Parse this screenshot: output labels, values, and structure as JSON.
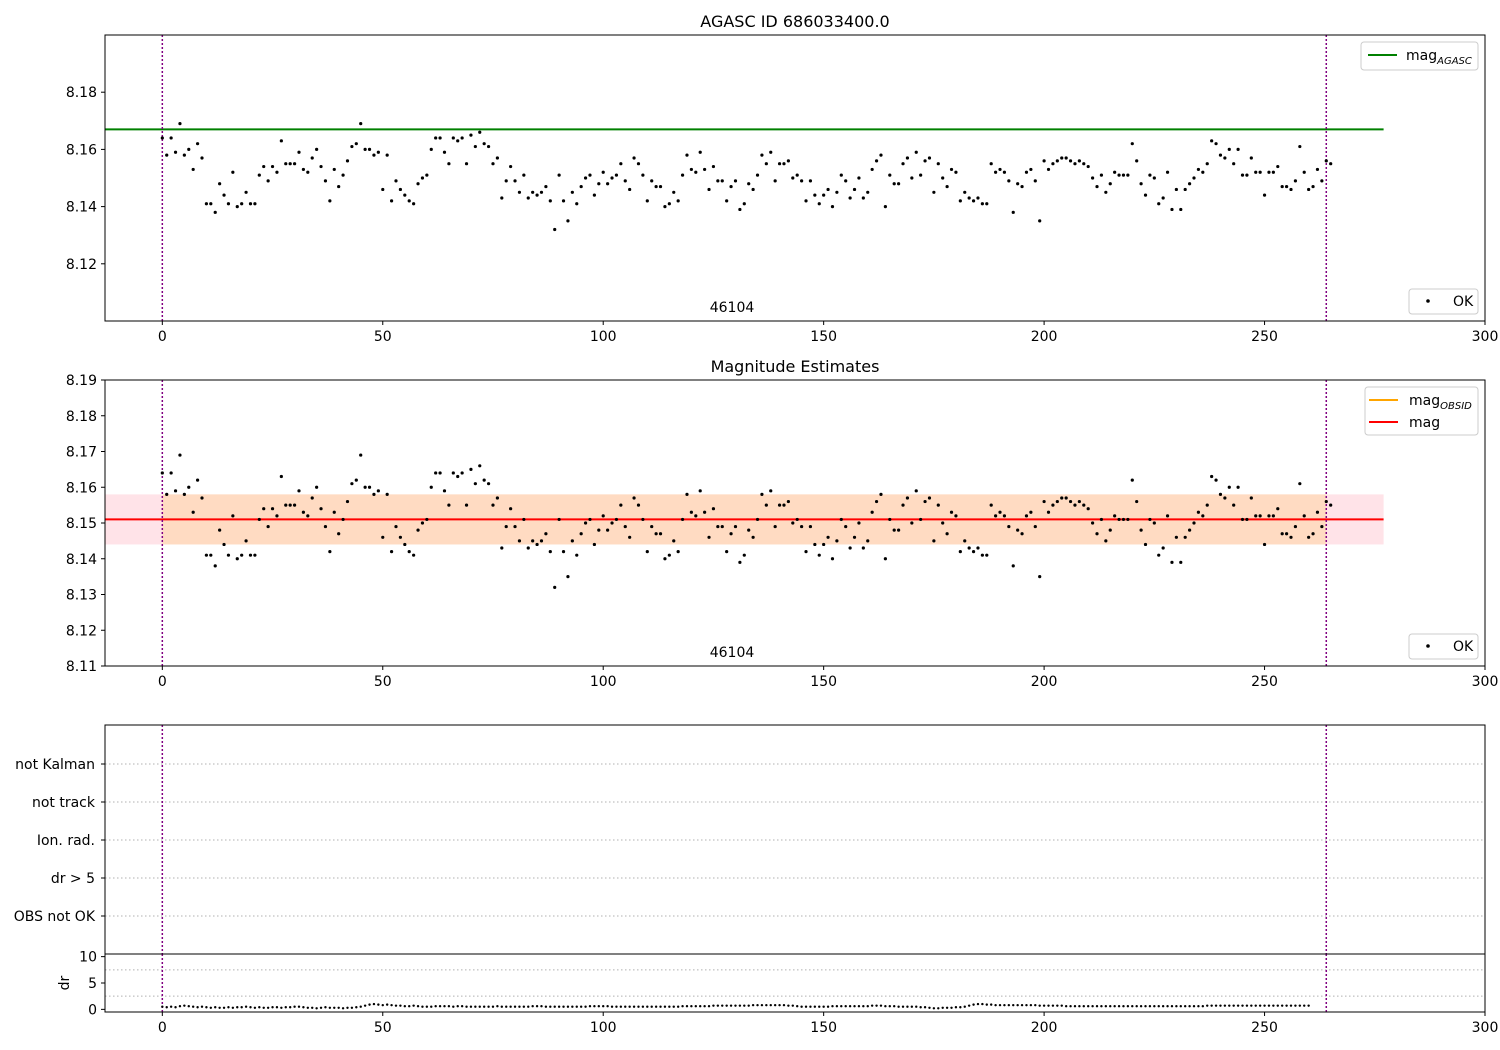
{
  "figure": {
    "line_colors": {
      "agasc": "#008000",
      "obsid": "#ffa500",
      "mag": "#ff0000",
      "band_fill": "#ffc0cb",
      "band_fill_2": "#ffd8b8",
      "vline": "#800080",
      "points": "#000000",
      "grid": "#b0b0b0"
    }
  },
  "chart_data": [
    {
      "type": "scatter",
      "title": "AGASC ID 686033400.0",
      "annotation": "46104",
      "xlim": [
        -13,
        300
      ],
      "ylim": [
        8.1,
        8.2
      ],
      "xticks": [
        0,
        50,
        100,
        150,
        200,
        250,
        300
      ],
      "yticks": [
        8.12,
        8.14,
        8.16,
        8.18
      ],
      "vlines": [
        0,
        264
      ],
      "hlines": [
        {
          "name": "mag_AGASC",
          "y": 8.167,
          "x": [
            -13,
            277
          ]
        }
      ],
      "legend_upper": {
        "main": "mag",
        "sub": "AGASC"
      },
      "legend_lower": "OK",
      "series": [
        {
          "name": "OK",
          "y_ref": "shared_points"
        }
      ]
    },
    {
      "type": "scatter",
      "title": "Magnitude Estimates",
      "annotation": "46104",
      "xlim": [
        -13,
        300
      ],
      "ylim": [
        8.11,
        8.19
      ],
      "xticks": [
        0,
        50,
        100,
        150,
        200,
        250,
        300
      ],
      "yticks": [
        8.11,
        8.12,
        8.13,
        8.14,
        8.15,
        8.16,
        8.17,
        8.18,
        8.19
      ],
      "vlines": [
        0,
        264
      ],
      "hlines": [
        {
          "name": "mag",
          "y": 8.151,
          "x": [
            -13,
            277
          ]
        }
      ],
      "bands": [
        {
          "y": [
            8.144,
            8.158
          ],
          "x": [
            -13,
            277
          ]
        }
      ],
      "legend_upper": [
        {
          "main": "mag",
          "sub": "OBSID"
        },
        {
          "main": "mag",
          "sub": ""
        }
      ],
      "legend_lower": "OK",
      "series": [
        {
          "name": "OK",
          "y_ref": "shared_points"
        }
      ]
    },
    {
      "type": "flags",
      "categories": [
        "not Kalman",
        "not track",
        "Ion. rad.",
        "dr > 5",
        "OBS not OK"
      ],
      "xlim": [
        -13,
        300
      ],
      "vlines": [
        0,
        264
      ]
    },
    {
      "type": "scatter",
      "ylabel": "dr",
      "xlim": [
        -13,
        300
      ],
      "ylim": [
        -0.5,
        10.5
      ],
      "xticks": [
        0,
        50,
        100,
        150,
        200,
        250,
        300
      ],
      "yticks": [
        0,
        5,
        10
      ],
      "vlines": [
        0,
        264
      ],
      "series": [
        {
          "name": "dr",
          "y": [
            0.5,
            0.4,
            0.5,
            0.4,
            0.6,
            0.7,
            0.6,
            0.5,
            0.4,
            0.5,
            0.4,
            0.3,
            0.4,
            0.3,
            0.3,
            0.4,
            0.3,
            0.4,
            0.4,
            0.5,
            0.4,
            0.3,
            0.4,
            0.3,
            0.3,
            0.4,
            0.4,
            0.3,
            0.4,
            0.4,
            0.5,
            0.5,
            0.4,
            0.3,
            0.3,
            0.2,
            0.3,
            0.4,
            0.3,
            0.3,
            0.3,
            0.2,
            0.3,
            0.3,
            0.4,
            0.5,
            0.7,
            0.9,
            1.0,
            0.9,
            0.8,
            0.9,
            0.8,
            0.7,
            0.7,
            0.6,
            0.6,
            0.7,
            0.6,
            0.5,
            0.5,
            0.5,
            0.6,
            0.6,
            0.6,
            0.6,
            0.5,
            0.6,
            0.6,
            0.5,
            0.5,
            0.5,
            0.5,
            0.5,
            0.5,
            0.5,
            0.6,
            0.5,
            0.5,
            0.5,
            0.5,
            0.5,
            0.5,
            0.5,
            0.6,
            0.6,
            0.6,
            0.5,
            0.5,
            0.5,
            0.5,
            0.5,
            0.5,
            0.5,
            0.5,
            0.5,
            0.5,
            0.6,
            0.6,
            0.6,
            0.6,
            0.6,
            0.5,
            0.5,
            0.5,
            0.5,
            0.5,
            0.5,
            0.5,
            0.5,
            0.5,
            0.5,
            0.5,
            0.5,
            0.5,
            0.5,
            0.5,
            0.5,
            0.6,
            0.6,
            0.6,
            0.6,
            0.6,
            0.6,
            0.6,
            0.7,
            0.7,
            0.7,
            0.7,
            0.7,
            0.7,
            0.7,
            0.7,
            0.7,
            0.8,
            0.8,
            0.8,
            0.8,
            0.8,
            0.8,
            0.8,
            0.8,
            0.7,
            0.7,
            0.6,
            0.5,
            0.5,
            0.5,
            0.5,
            0.5,
            0.5,
            0.5,
            0.6,
            0.6,
            0.6,
            0.6,
            0.6,
            0.6,
            0.6,
            0.6,
            0.6,
            0.7,
            0.7,
            0.7,
            0.6,
            0.6,
            0.6,
            0.5,
            0.5,
            0.5,
            0.5,
            0.5,
            0.4,
            0.4,
            0.3,
            0.2,
            0.2,
            0.3,
            0.3,
            0.3,
            0.4,
            0.4,
            0.5,
            0.7,
            0.9,
            1.0,
            1.0,
            0.9,
            0.9,
            0.8,
            0.8,
            0.8,
            0.8,
            0.8,
            0.8,
            0.8,
            0.8,
            0.8,
            0.8,
            0.7,
            0.7,
            0.7,
            0.7,
            0.7,
            0.7,
            0.6,
            0.6,
            0.6,
            0.6,
            0.6,
            0.6,
            0.6,
            0.6,
            0.6,
            0.6,
            0.6,
            0.6,
            0.6,
            0.6,
            0.6,
            0.6,
            0.6,
            0.6,
            0.6,
            0.6,
            0.6,
            0.6,
            0.6,
            0.6,
            0.6,
            0.6,
            0.6,
            0.6,
            0.6,
            0.6,
            0.6,
            0.6,
            0.7,
            0.7,
            0.7,
            0.7,
            0.7,
            0.7,
            0.7,
            0.7,
            0.7,
            0.7,
            0.7,
            0.7,
            0.7,
            0.7,
            0.7,
            0.7,
            0.7,
            0.7,
            0.7,
            0.7,
            0.7,
            0.7,
            0.7,
            0.7
          ]
        }
      ]
    }
  ],
  "shared_points": {
    "x_start": 0,
    "y": [
      8.164,
      8.158,
      8.164,
      8.159,
      8.169,
      8.158,
      8.16,
      8.153,
      8.162,
      8.157,
      8.141,
      8.141,
      8.138,
      8.148,
      8.144,
      8.141,
      8.152,
      8.14,
      8.141,
      8.145,
      8.141,
      8.141,
      8.151,
      8.154,
      8.149,
      8.154,
      8.152,
      8.163,
      8.155,
      8.155,
      8.155,
      8.159,
      8.153,
      8.152,
      8.157,
      8.16,
      8.154,
      8.149,
      8.142,
      8.153,
      8.147,
      8.151,
      8.156,
      8.161,
      8.162,
      8.169,
      8.16,
      8.16,
      8.158,
      8.159,
      8.146,
      8.158,
      8.142,
      8.149,
      8.146,
      8.144,
      8.142,
      8.141,
      8.148,
      8.15,
      8.151,
      8.16,
      8.164,
      8.164,
      8.159,
      8.155,
      8.164,
      8.163,
      8.164,
      8.155,
      8.165,
      8.161,
      8.166,
      8.162,
      8.161,
      8.155,
      8.157,
      8.143,
      8.149,
      8.154,
      8.149,
      8.145,
      8.151,
      8.143,
      8.145,
      8.144,
      8.145,
      8.147,
      8.142,
      8.132,
      8.151,
      8.142,
      8.135,
      8.145,
      8.141,
      8.147,
      8.15,
      8.151,
      8.144,
      8.148,
      8.152,
      8.148,
      8.15,
      8.151,
      8.155,
      8.149,
      8.146,
      8.157,
      8.155,
      8.151,
      8.142,
      8.149,
      8.147,
      8.147,
      8.14,
      8.141,
      8.145,
      8.142,
      8.151,
      8.158,
      8.153,
      8.152,
      8.159,
      8.153,
      8.146,
      8.154,
      8.149,
      8.149,
      8.142,
      8.147,
      8.149,
      8.139,
      8.141,
      8.148,
      8.146,
      8.151,
      8.158,
      8.155,
      8.159,
      8.149,
      8.155,
      8.155,
      8.156,
      8.15,
      8.151,
      8.149,
      8.142,
      8.149,
      8.144,
      8.141,
      8.144,
      8.146,
      8.14,
      8.145,
      8.151,
      8.149,
      8.143,
      8.146,
      8.15,
      8.143,
      8.145,
      8.153,
      8.156,
      8.158,
      8.14,
      8.151,
      8.148,
      8.148,
      8.155,
      8.157,
      8.15,
      8.159,
      8.151,
      8.156,
      8.157,
      8.145,
      8.155,
      8.15,
      8.147,
      8.153,
      8.152,
      8.142,
      8.145,
      8.143,
      8.142,
      8.143,
      8.141,
      8.141,
      8.155,
      8.152,
      8.153,
      8.152,
      8.149,
      8.138,
      8.148,
      8.147,
      8.152,
      8.153,
      8.149,
      8.135,
      8.156,
      8.153,
      8.155,
      8.156,
      8.157,
      8.157,
      8.156,
      8.155,
      8.156,
      8.155,
      8.154,
      8.15,
      8.147,
      8.151,
      8.145,
      8.148,
      8.152,
      8.151,
      8.151,
      8.151,
      8.162,
      8.156,
      8.148,
      8.144,
      8.151,
      8.15,
      8.141,
      8.143,
      8.152,
      8.139,
      8.146,
      8.139,
      8.146,
      8.148,
      8.15,
      8.153,
      8.152,
      8.155,
      8.163,
      8.162,
      8.158,
      8.157,
      8.16,
      8.155,
      8.16,
      8.151,
      8.151,
      8.157,
      8.152,
      8.152,
      8.144,
      8.152,
      8.152,
      8.154,
      8.147,
      8.147,
      8.146,
      8.149,
      8.161,
      8.152,
      8.146,
      8.147,
      8.153,
      8.149,
      8.156,
      8.155
    ]
  }
}
